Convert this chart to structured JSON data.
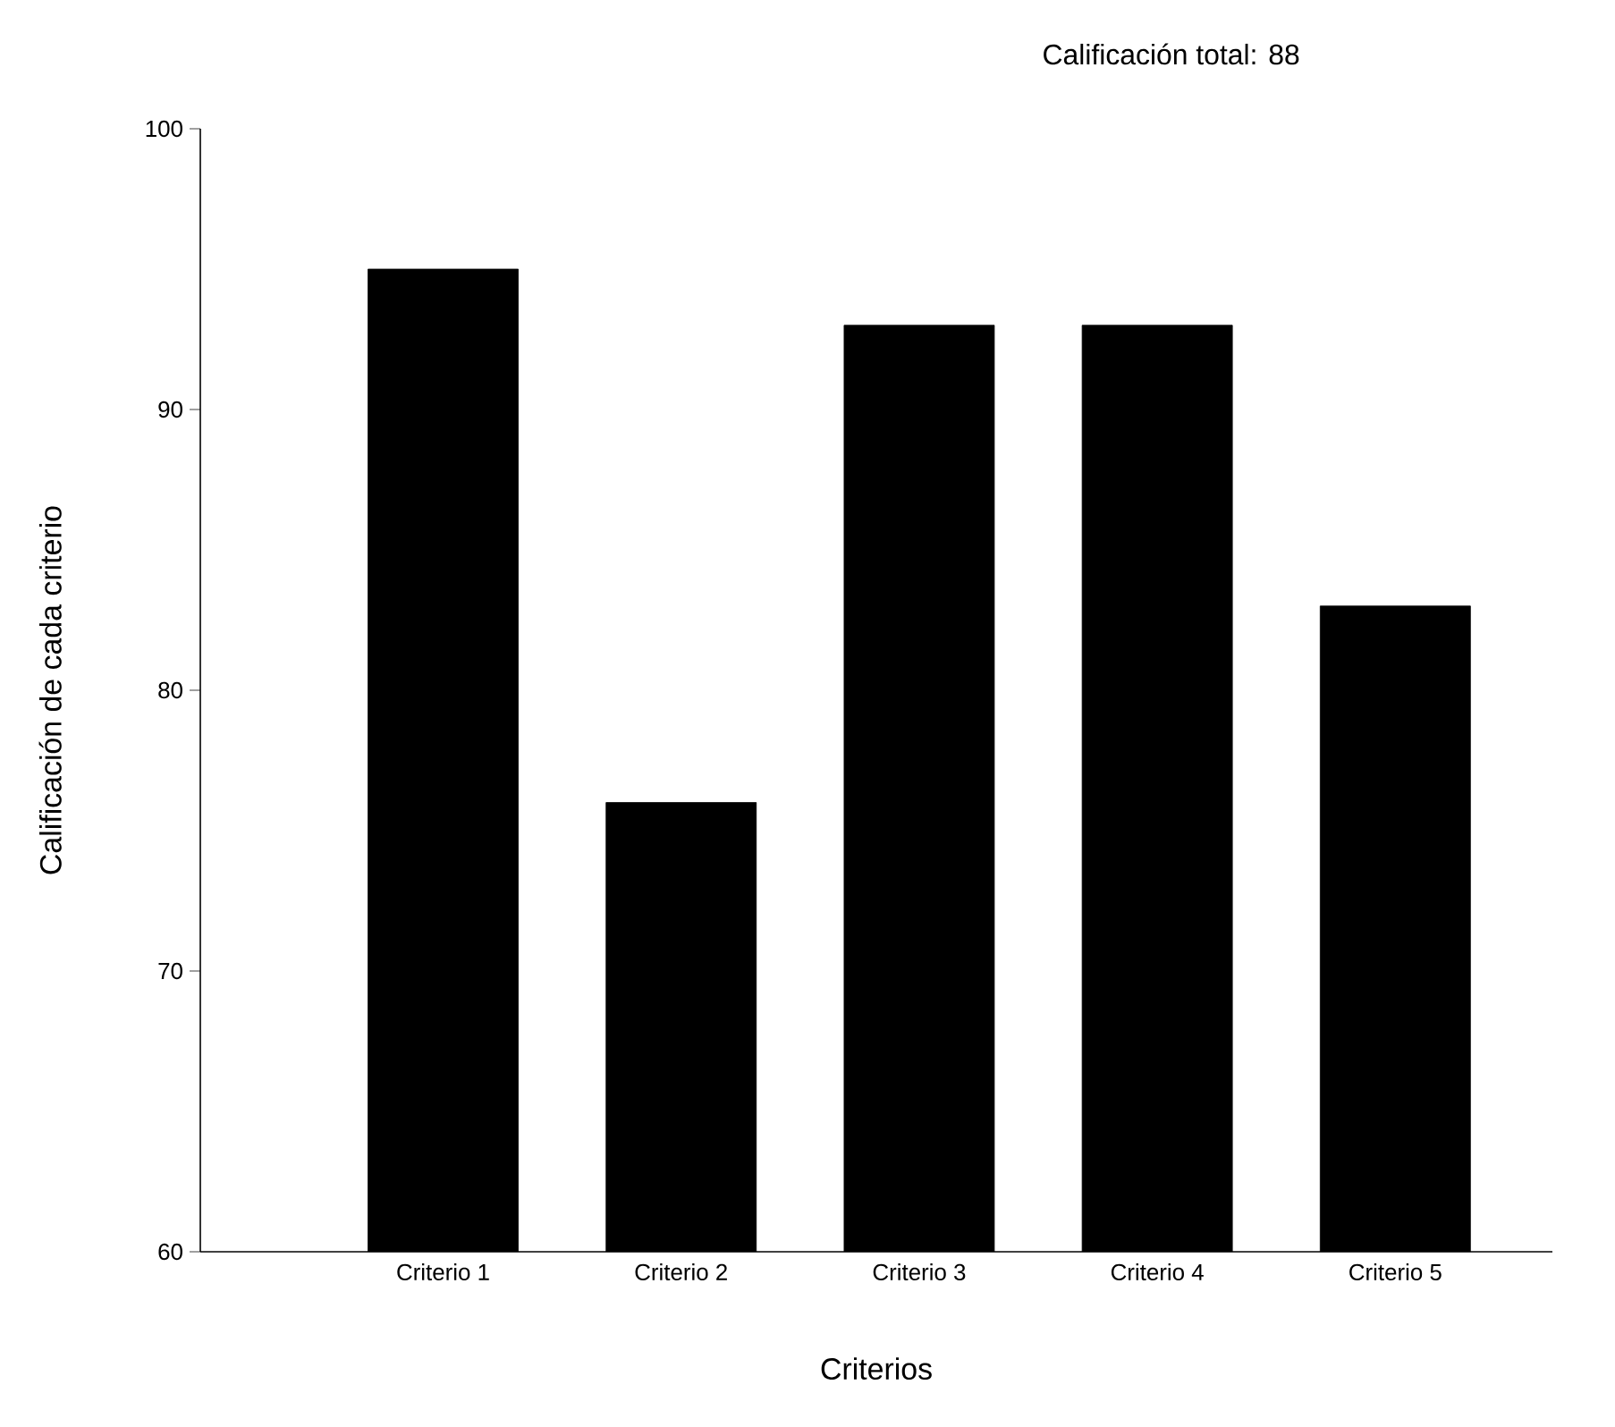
{
  "chart_data": {
    "type": "bar",
    "title": "Calificación total: 88",
    "xlabel": "Criterios",
    "ylabel": "Calificación de cada criterio",
    "categories": [
      "Criterio 1",
      "Criterio 2",
      "Criterio 3",
      "Criterio 4",
      "Criterio 5"
    ],
    "values": [
      95,
      76,
      93,
      93,
      83
    ],
    "color": "#000000",
    "ylim": [
      60,
      100
    ],
    "yticks": [
      60,
      70,
      80,
      90,
      100
    ]
  }
}
